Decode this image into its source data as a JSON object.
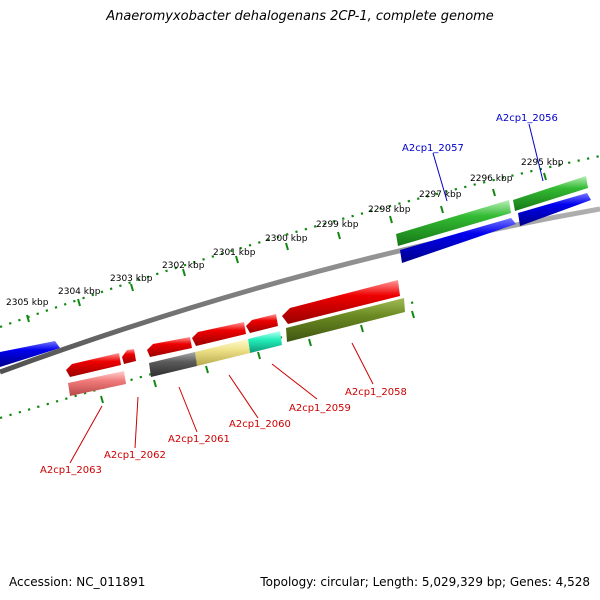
{
  "title": "Anaeromyxobacter dehalogenans 2CP-1, complete genome",
  "footer": {
    "accession": "Accession: NC_011891",
    "summary": "Topology: circular; Length: 5,029,329 bp; Genes: 4,528"
  },
  "colors": {
    "backbone": "#808080",
    "tick": "#118811",
    "forward_label": "#0000cc",
    "reverse_label": "#cc0000"
  },
  "scale": {
    "tick_labels": [
      "2295 kbp",
      "2296 kbp",
      "2297 kbp",
      "2298 kbp",
      "2299 kbp",
      "2300 kbp",
      "2301 kbp",
      "2302 kbp",
      "2303 kbp",
      "2304 kbp",
      "2305 kbp"
    ]
  },
  "gene_labels": [
    {
      "id": "A2cp1_2056",
      "strand": "forward"
    },
    {
      "id": "A2cp1_2057",
      "strand": "forward"
    },
    {
      "id": "A2cp1_2058",
      "strand": "reverse"
    },
    {
      "id": "A2cp1_2059",
      "strand": "reverse"
    },
    {
      "id": "A2cp1_2060",
      "strand": "reverse"
    },
    {
      "id": "A2cp1_2061",
      "strand": "reverse"
    },
    {
      "id": "A2cp1_2062",
      "strand": "reverse"
    },
    {
      "id": "A2cp1_2063",
      "strand": "reverse"
    }
  ]
}
